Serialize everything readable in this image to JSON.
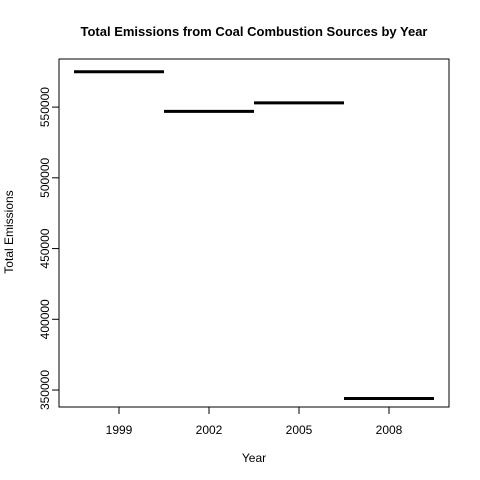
{
  "chart_data": {
    "type": "line",
    "title": "Total Emissions from Coal Combustion Sources by Year",
    "xlabel": "Year",
    "ylabel": "Total Emissions",
    "categories": [
      "1999",
      "2002",
      "2005",
      "2008"
    ],
    "values": [
      575000,
      547000,
      553000,
      344000
    ],
    "y_ticks": [
      350000,
      400000,
      450000,
      500000,
      550000
    ],
    "y_tick_labels": [
      "350000",
      "400000",
      "450000",
      "500000",
      "550000"
    ],
    "ylim": [
      338000,
      584000
    ],
    "grid": false,
    "legend": "none",
    "plot_style": "horizontal-step-segments",
    "colors": {
      "line": "#000000",
      "axis": "#000000",
      "background": "#ffffff"
    }
  }
}
